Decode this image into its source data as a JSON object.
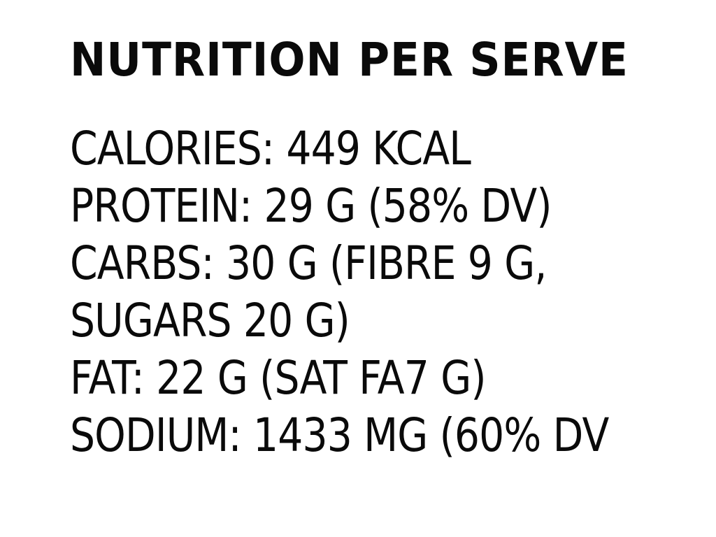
{
  "title": "NUTRITION PER SERVE",
  "lines": [
    "CALORIES: 449 KCAL",
    "PROTEIN: 29 G (58% DV)",
    "CARBS: 30 G (FIBRE 9 G,",
    "SUGARS 20 G)",
    "FAT: 22 G (SAT FA7 G)",
    "SODIUM: 1433 MG (60% DV"
  ]
}
